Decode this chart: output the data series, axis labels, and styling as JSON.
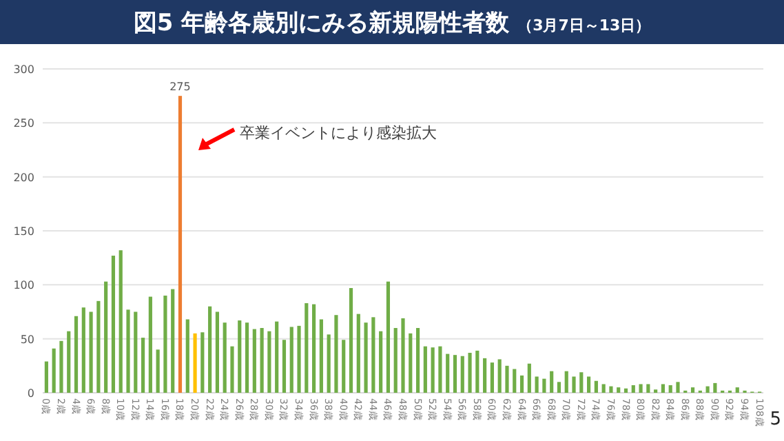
{
  "chart_data": {
    "type": "bar",
    "title": "図5 年齢各歳別にみる新規陽性者数",
    "subtitle": "（3月7日～13日）",
    "categories": [
      "0歳",
      null,
      "2歳",
      null,
      "4歳",
      null,
      "6歳",
      null,
      "8歳",
      null,
      "10歳",
      null,
      "12歳",
      null,
      "14歳",
      null,
      "16歳",
      null,
      "18歳",
      null,
      "20歳",
      null,
      "22歳",
      null,
      "24歳",
      null,
      "26歳",
      null,
      "28歳",
      null,
      "30歳",
      null,
      "32歳",
      null,
      "34歳",
      null,
      "36歳",
      null,
      "38歳",
      null,
      "40歳",
      null,
      "42歳",
      null,
      "44歳",
      null,
      "46歳",
      null,
      "48歳",
      null,
      "50歳",
      null,
      "52歳",
      null,
      "54歳",
      null,
      "56歳",
      null,
      "58歳",
      null,
      "60歳",
      null,
      "62歳",
      null,
      "64歳",
      null,
      "66歳",
      null,
      "68歳",
      null,
      "70歳",
      null,
      "72歳",
      null,
      "74歳",
      null,
      "76歳",
      null,
      "78歳",
      null,
      "80歳",
      null,
      "82歳",
      null,
      "84歳",
      null,
      "86歳",
      null,
      "88歳",
      null,
      "90歳",
      null,
      "92歳",
      null,
      "94歳",
      null,
      "108歳"
    ],
    "values": [
      29,
      41,
      48,
      57,
      71,
      79,
      75,
      85,
      103,
      127,
      132,
      77,
      75,
      51,
      89,
      40,
      90,
      96,
      275,
      68,
      55,
      56,
      80,
      75,
      65,
      43,
      67,
      65,
      59,
      60,
      57,
      66,
      49,
      61,
      62,
      83,
      82,
      68,
      54,
      72,
      49,
      97,
      73,
      65,
      70,
      57,
      103,
      60,
      69,
      55,
      60,
      43,
      42,
      43,
      36,
      35,
      34,
      37,
      39,
      32,
      28,
      31,
      25,
      22,
      16,
      27,
      15,
      13,
      20,
      10,
      20,
      15,
      19,
      15,
      11,
      8,
      6,
      5,
      4,
      7,
      8,
      8,
      3,
      8,
      7,
      10,
      2,
      5,
      2,
      6,
      9,
      2,
      2,
      5,
      2,
      1,
      1
    ],
    "colors": [
      "#70ad47",
      "#70ad47",
      "#70ad47",
      "#70ad47",
      "#70ad47",
      "#70ad47",
      "#70ad47",
      "#70ad47",
      "#70ad47",
      "#70ad47",
      "#70ad47",
      "#70ad47",
      "#70ad47",
      "#70ad47",
      "#70ad47",
      "#70ad47",
      "#70ad47",
      "#70ad47",
      "#ed7d31",
      "#70ad47",
      "#ffc000",
      "#70ad47",
      "#70ad47",
      "#70ad47",
      "#70ad47",
      "#70ad47",
      "#70ad47",
      "#70ad47",
      "#70ad47",
      "#70ad47",
      "#70ad47",
      "#70ad47",
      "#70ad47",
      "#70ad47",
      "#70ad47",
      "#70ad47",
      "#70ad47",
      "#70ad47",
      "#70ad47",
      "#70ad47",
      "#70ad47",
      "#70ad47",
      "#70ad47",
      "#70ad47",
      "#70ad47",
      "#70ad47",
      "#70ad47",
      "#70ad47",
      "#70ad47",
      "#70ad47",
      "#70ad47",
      "#70ad47",
      "#70ad47",
      "#70ad47",
      "#70ad47",
      "#70ad47",
      "#70ad47",
      "#70ad47",
      "#70ad47",
      "#70ad47",
      "#70ad47",
      "#70ad47",
      "#70ad47",
      "#70ad47",
      "#70ad47",
      "#70ad47",
      "#70ad47",
      "#70ad47",
      "#70ad47",
      "#70ad47",
      "#70ad47",
      "#70ad47",
      "#70ad47",
      "#70ad47",
      "#70ad47",
      "#70ad47",
      "#70ad47",
      "#70ad47",
      "#70ad47",
      "#70ad47",
      "#70ad47",
      "#70ad47",
      "#70ad47",
      "#70ad47",
      "#70ad47",
      "#70ad47",
      "#70ad47",
      "#70ad47",
      "#70ad47",
      "#70ad47",
      "#70ad47",
      "#70ad47",
      "#70ad47",
      "#70ad47",
      "#70ad47",
      "#70ad47",
      "#70ad47"
    ],
    "value_labels": [
      null,
      null,
      null,
      null,
      null,
      null,
      null,
      null,
      null,
      null,
      null,
      null,
      null,
      null,
      null,
      null,
      null,
      null,
      "275",
      null,
      null,
      null,
      null,
      null,
      null,
      null,
      null,
      null,
      null,
      null,
      null,
      null,
      null,
      null,
      null,
      null,
      null,
      null,
      null,
      null,
      null,
      null,
      null,
      null,
      null,
      null,
      null,
      null,
      null,
      null,
      null,
      null,
      null,
      null,
      null,
      null,
      null,
      null,
      null,
      null,
      null,
      null,
      null,
      null,
      null,
      null,
      null,
      null,
      null,
      null,
      null,
      null,
      null,
      null,
      null,
      null,
      null,
      null,
      null,
      null,
      null,
      null,
      null,
      null,
      null,
      null,
      null,
      null,
      null,
      null,
      null,
      null,
      null,
      null,
      null,
      null,
      null
    ],
    "ylim": [
      0,
      300
    ],
    "yticks": [
      0,
      50,
      100,
      150,
      200,
      250,
      300
    ],
    "grid": "y",
    "annotations": [
      "卒業イベントにより感染拡大",
      "5"
    ]
  }
}
